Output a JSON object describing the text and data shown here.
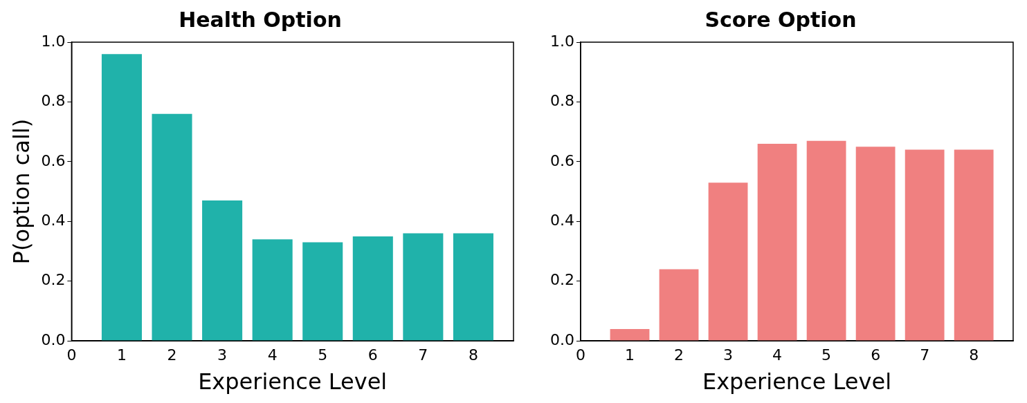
{
  "chart_data": [
    {
      "type": "bar",
      "title": "Health Option",
      "xlabel": "Experience Level",
      "ylabel": "P(option call)",
      "x": [
        1,
        2,
        3,
        4,
        5,
        6,
        7,
        8
      ],
      "values": [
        0.96,
        0.76,
        0.47,
        0.34,
        0.33,
        0.35,
        0.36,
        0.36
      ],
      "color": "#20b2aa",
      "xlim": [
        0,
        8.8
      ],
      "xticks": [
        0,
        1,
        2,
        3,
        4,
        5,
        6,
        7,
        8
      ],
      "ylim": [
        0,
        1
      ],
      "yticks": [
        {
          "value": 0,
          "label": "0.0"
        },
        {
          "value": 0.2,
          "label": "0.2"
        },
        {
          "value": 0.4,
          "label": "0.4"
        },
        {
          "value": 0.6,
          "label": "0.6"
        },
        {
          "value": 0.8,
          "label": "0.8"
        },
        {
          "value": 1,
          "label": "1.0"
        }
      ],
      "grid": false,
      "legend": false
    },
    {
      "type": "bar",
      "title": "Score Option",
      "xlabel": "Experience Level",
      "x": [
        1,
        2,
        3,
        4,
        5,
        6,
        7,
        8
      ],
      "values": [
        0.04,
        0.24,
        0.53,
        0.66,
        0.67,
        0.65,
        0.64,
        0.64
      ],
      "color": "#f08080",
      "xlim": [
        0,
        8.8
      ],
      "xticks": [
        0,
        1,
        2,
        3,
        4,
        5,
        6,
        7,
        8
      ],
      "ylim": [
        0,
        1
      ],
      "yticks": [
        {
          "value": 0,
          "label": "0.0"
        },
        {
          "value": 0.2,
          "label": "0.2"
        },
        {
          "value": 0.4,
          "label": "0.4"
        },
        {
          "value": 0.6,
          "label": "0.6"
        },
        {
          "value": 0.8,
          "label": "0.8"
        },
        {
          "value": 1,
          "label": "1.0"
        }
      ],
      "grid": false,
      "legend": false
    }
  ]
}
